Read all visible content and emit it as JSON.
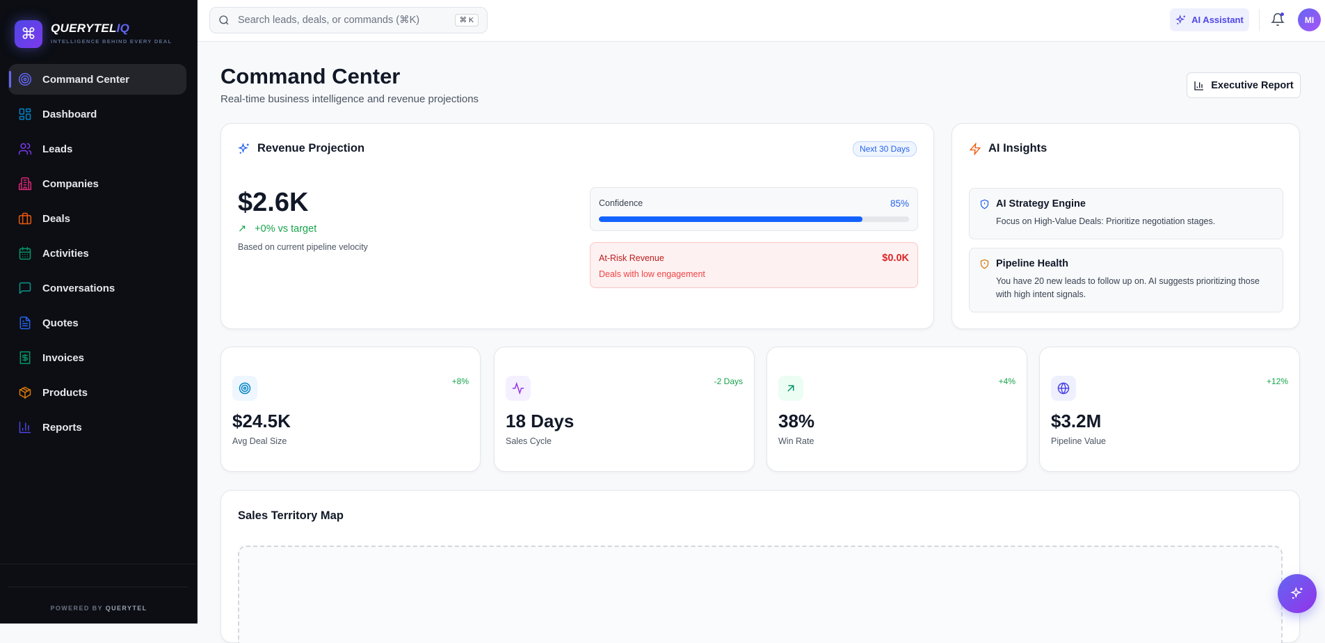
{
  "brand": {
    "name": "QUERYTEL",
    "suffix": "IQ",
    "tagline": "INTELLIGENCE BEHIND EVERY DEAL",
    "icon": "command-icon"
  },
  "sidebar": {
    "items": [
      {
        "label": "Command Center",
        "icon": "target-icon",
        "color": "#6366f1",
        "active": true
      },
      {
        "label": "Dashboard",
        "icon": "grid-icon",
        "color": "#0284c7"
      },
      {
        "label": "Leads",
        "icon": "users-icon",
        "color": "#7c3aed"
      },
      {
        "label": "Companies",
        "icon": "building-icon",
        "color": "#db2777"
      },
      {
        "label": "Deals",
        "icon": "briefcase-icon",
        "color": "#ea580c"
      },
      {
        "label": "Activities",
        "icon": "calendar-icon",
        "color": "#059669"
      },
      {
        "label": "Conversations",
        "icon": "message-icon",
        "color": "#0d9488"
      },
      {
        "label": "Quotes",
        "icon": "file-icon",
        "color": "#2563eb"
      },
      {
        "label": "Invoices",
        "icon": "receipt-icon",
        "color": "#059669"
      },
      {
        "label": "Products",
        "icon": "box-icon",
        "color": "#d97706"
      },
      {
        "label": "Reports",
        "icon": "bar-chart-icon",
        "color": "#4f46e5"
      }
    ],
    "powered_prefix": "POWERED BY",
    "powered_brand": "QUERYTEL"
  },
  "topbar": {
    "search_placeholder": "Search leads, deals, or commands (⌘K)",
    "shortcut": "⌘ K",
    "ai_assistant": "AI Assistant",
    "avatar": "MI"
  },
  "header": {
    "title": "Command Center",
    "subtitle": "Real-time business intelligence and revenue projections",
    "report_button": "Executive Report"
  },
  "revenue": {
    "title": "Revenue Projection",
    "badge": "Next 30 Days",
    "value": "$2.6K",
    "trend": "+0% vs target",
    "basis": "Based on current pipeline velocity",
    "confidence_label": "Confidence",
    "confidence_value": "85%",
    "confidence_percent": 85,
    "risk_label": "At-Risk Revenue",
    "risk_value": "$0.0K",
    "risk_sub": "Deals with low engagement"
  },
  "insights": {
    "title": "AI Insights",
    "items": [
      {
        "title": "AI Strategy Engine",
        "text": "Focus on High-Value Deals: Prioritize negotiation stages."
      },
      {
        "title": "Pipeline Health",
        "text": "You have 20 new leads to follow up on. AI suggests prioritizing those with high intent signals."
      }
    ]
  },
  "stats": [
    {
      "value": "$24.5K",
      "label": "Avg Deal Size",
      "change": "+8%",
      "icon": "target-icon"
    },
    {
      "value": "18 Days",
      "label": "Sales Cycle",
      "change": "-2 Days",
      "icon": "activity-icon"
    },
    {
      "value": "38%",
      "label": "Win Rate",
      "change": "+4%",
      "icon": "arrow-up-right-icon"
    },
    {
      "value": "$3.2M",
      "label": "Pipeline Value",
      "change": "+12%",
      "icon": "globe-icon"
    }
  ],
  "map": {
    "title": "Sales Territory Map"
  }
}
